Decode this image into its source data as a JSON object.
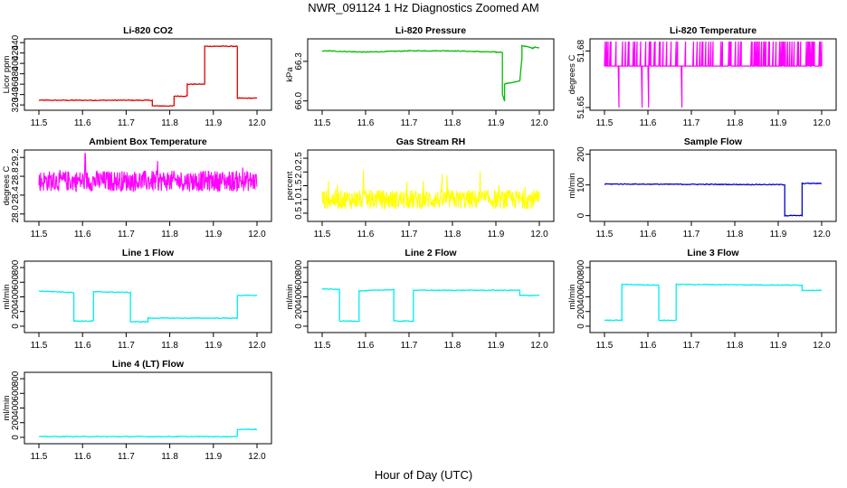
{
  "figure": {
    "title": "NWR_091124  1 Hz Diagnostics Zoomed AM",
    "xlabel": "Hour of Day (UTC)"
  },
  "chart_data": [
    {
      "type": "line",
      "title": "Li-820 CO2",
      "ylabel": "Licor ppm",
      "color": "#e00000",
      "xlim": [
        11.5,
        12.0
      ],
      "xticks": [
        "11.5",
        "11.6",
        "11.7",
        "11.8",
        "11.9",
        "12.0"
      ],
      "ylim": [
        315,
        442
      ],
      "yticks": [
        "320",
        "340",
        "360",
        "380",
        "400",
        "420",
        "440"
      ],
      "x": [
        11.5,
        11.76,
        11.76,
        11.81,
        11.81,
        11.84,
        11.84,
        11.88,
        11.88,
        11.955,
        11.955,
        11.96,
        12.0
      ],
      "y": [
        329,
        329,
        318,
        318,
        337,
        337,
        360,
        360,
        433,
        433,
        332,
        333,
        333
      ]
    },
    {
      "type": "line",
      "title": "Li-820 Pressure",
      "ylabel": "kPa",
      "color": "#00bb00",
      "xlim": [
        11.5,
        12.0
      ],
      "xticks": [
        "11.5",
        "11.6",
        "11.7",
        "11.8",
        "11.9",
        "12.0"
      ],
      "ylim": [
        65.95,
        66.45
      ],
      "yticks": [
        "66.0",
        "66.3"
      ],
      "x": [
        11.5,
        11.6,
        11.7,
        11.8,
        11.9,
        11.915,
        11.915,
        11.92,
        11.92,
        11.955,
        11.955,
        11.96,
        11.96,
        11.985,
        11.99,
        12.0
      ],
      "y": [
        66.38,
        66.37,
        66.38,
        66.38,
        66.37,
        66.37,
        66.05,
        66.0,
        66.13,
        66.15,
        66.15,
        66.33,
        66.42,
        66.4,
        66.41,
        66.4
      ]
    },
    {
      "type": "line",
      "title": "Li-820 Temperature",
      "ylabel": "degrees C",
      "color": "#ff00ff",
      "xlim": [
        11.5,
        12.0
      ],
      "xticks": [
        "11.5",
        "11.6",
        "11.7",
        "11.8",
        "11.9",
        "12.0"
      ],
      "ylim": [
        51.65,
        51.685
      ],
      "yticks": [
        "51.65",
        "51.68"
      ],
      "base": 51.672,
      "spike_high": 51.685,
      "spike_low": 51.65
    },
    {
      "type": "line",
      "title": "Ambient Box Temperature",
      "ylabel": "degrees C",
      "color": "#ff00ff",
      "xlim": [
        11.5,
        12.0
      ],
      "xticks": [
        "11.5",
        "11.6",
        "11.7",
        "11.8",
        "11.9",
        "12.0"
      ],
      "ylim": [
        27.9,
        29.3
      ],
      "yticks": [
        "28.0",
        "28.4",
        "28.8",
        "29.2"
      ],
      "mean": 28.7,
      "noise": 0.22
    },
    {
      "type": "line",
      "title": "Gas Stream RH",
      "ylabel": "percent",
      "color": "#ffff00",
      "xlim": [
        11.5,
        12.0
      ],
      "xticks": [
        "11.5",
        "11.6",
        "11.7",
        "11.8",
        "11.9",
        "12.0"
      ],
      "ylim": [
        0.3,
        2.7
      ],
      "yticks": [
        "0.5",
        "1.0",
        "1.5",
        "2.0",
        "2.5"
      ],
      "mean": 1.0,
      "noise": 0.35
    },
    {
      "type": "line",
      "title": "Sample Flow",
      "ylabel": "ml/min",
      "color": "#0000cc",
      "xlim": [
        11.5,
        12.0
      ],
      "xticks": [
        "11.5",
        "11.6",
        "11.7",
        "11.8",
        "11.9",
        "12.0"
      ],
      "ylim": [
        -10,
        205
      ],
      "yticks": [
        "0",
        "100",
        "200"
      ],
      "x": [
        11.5,
        11.915,
        11.915,
        11.955,
        11.955,
        12.0
      ],
      "y": [
        103,
        101,
        0,
        0,
        105,
        105
      ]
    },
    {
      "type": "line",
      "title": "Line 1 Flow",
      "ylabel": "ml/min",
      "color": "#00eeee",
      "xlim": [
        11.5,
        12.0
      ],
      "xticks": [
        "11.5",
        "11.6",
        "11.7",
        "11.8",
        "11.9",
        "12.0"
      ],
      "ylim": [
        -50,
        850
      ],
      "yticks": [
        "0",
        "200",
        "400",
        "600",
        "800"
      ],
      "x": [
        11.5,
        11.58,
        11.58,
        11.625,
        11.625,
        11.71,
        11.71,
        11.75,
        11.75,
        11.955,
        11.955,
        12.0
      ],
      "y": [
        480,
        460,
        70,
        70,
        470,
        460,
        60,
        60,
        110,
        110,
        420,
        420
      ]
    },
    {
      "type": "line",
      "title": "Line 2 Flow",
      "ylabel": "ml/min",
      "color": "#00eeee",
      "xlim": [
        11.5,
        12.0
      ],
      "xticks": [
        "11.5",
        "11.6",
        "11.7",
        "11.8",
        "11.9",
        "12.0"
      ],
      "ylim": [
        -50,
        850
      ],
      "yticks": [
        "0",
        "200",
        "400",
        "600",
        "800"
      ],
      "x": [
        11.5,
        11.54,
        11.54,
        11.585,
        11.585,
        11.665,
        11.665,
        11.71,
        11.71,
        11.955,
        11.955,
        12.0
      ],
      "y": [
        510,
        500,
        70,
        70,
        480,
        500,
        70,
        70,
        490,
        490,
        420,
        420
      ]
    },
    {
      "type": "line",
      "title": "Line 3 Flow",
      "ylabel": "ml/min",
      "color": "#00eeee",
      "xlim": [
        11.5,
        12.0
      ],
      "xticks": [
        "11.5",
        "11.6",
        "11.7",
        "11.8",
        "11.9",
        "12.0"
      ],
      "ylim": [
        -50,
        850
      ],
      "yticks": [
        "0",
        "200",
        "400",
        "600",
        "800"
      ],
      "x": [
        11.5,
        11.54,
        11.54,
        11.625,
        11.625,
        11.665,
        11.665,
        11.955,
        11.955,
        12.0
      ],
      "y": [
        80,
        80,
        570,
        560,
        80,
        80,
        570,
        560,
        490,
        490
      ]
    },
    {
      "type": "line",
      "title": "Line 4 (LT) Flow",
      "ylabel": "ml/min",
      "color": "#00eeee",
      "xlim": [
        11.5,
        12.0
      ],
      "xticks": [
        "11.5",
        "11.6",
        "11.7",
        "11.8",
        "11.9",
        "12.0"
      ],
      "ylim": [
        -50,
        850
      ],
      "yticks": [
        "0",
        "200",
        "400",
        "600",
        "800"
      ],
      "x": [
        11.5,
        11.955,
        11.955,
        12.0
      ],
      "y": [
        10,
        10,
        110,
        110
      ]
    }
  ]
}
